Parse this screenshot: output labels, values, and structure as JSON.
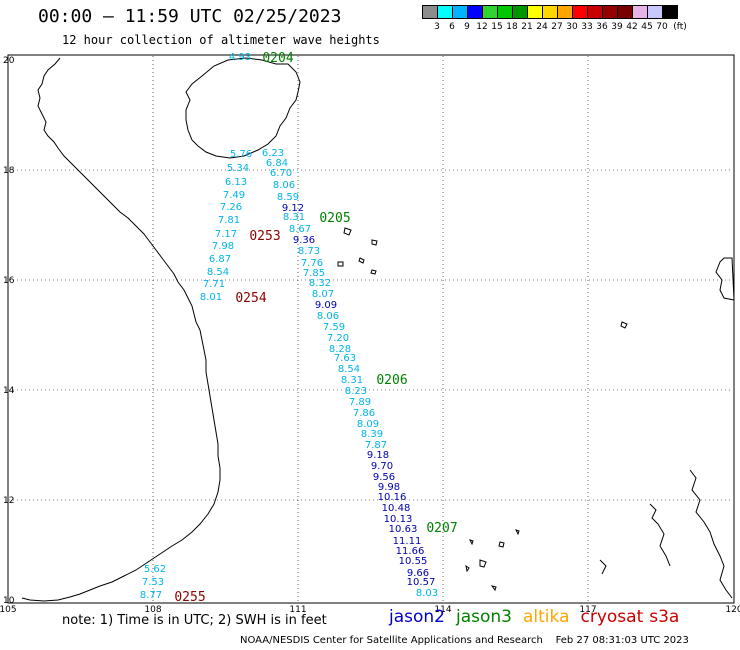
{
  "header": {
    "title": "00:00 – 11:59 UTC 02/25/2023",
    "subtitle": "12 hour collection of altimeter wave heights"
  },
  "colorbar": {
    "labels": [
      "3",
      "6",
      "9",
      "12",
      "15",
      "18",
      "21",
      "24",
      "27",
      "30",
      "33",
      "36",
      "39",
      "42",
      "45",
      "70",
      "(ft)"
    ],
    "colors": [
      "#8c8c8c",
      "#00ffff",
      "#00b4ff",
      "#0000ff",
      "#32d232",
      "#00c800",
      "#009600",
      "#ffff00",
      "#ffd700",
      "#ffa500",
      "#ff0000",
      "#c80000",
      "#960000",
      "#780000",
      "#e6b4e6",
      "#c8c8ff",
      "#000000"
    ]
  },
  "axes": {
    "lon_ticks": [
      "105",
      "108",
      "111",
      "114",
      "117",
      "120"
    ],
    "lat_ticks": [
      "20",
      "18",
      "16",
      "14",
      "12",
      "10"
    ]
  },
  "passes": [
    {
      "label": "0204",
      "color": "#008000"
    },
    {
      "label": "0205",
      "color": "#008000"
    },
    {
      "label": "0206",
      "color": "#008000"
    },
    {
      "label": "0207",
      "color": "#008000"
    },
    {
      "label": "0253",
      "color": "#8b0000"
    },
    {
      "label": "0254",
      "color": "#8b0000"
    },
    {
      "label": "0255",
      "color": "#8b0000"
    }
  ],
  "swh_light": [
    "4.93",
    "6.23",
    "5.76",
    "6.84",
    "5.34",
    "6.70",
    "6.13",
    "8.06",
    "7.49",
    "8.59",
    "7.26",
    "8.31",
    "7.81",
    "8.67",
    "7.17",
    "8.73",
    "7.98",
    "7.76",
    "6.87",
    "7.85",
    "8.54",
    "8.32",
    "7.71",
    "8.07",
    "8.01",
    "8.06",
    "7.59",
    "7.20",
    "8.28",
    "7.63",
    "8.54",
    "8.31",
    "8.23",
    "7.89",
    "7.86",
    "8.09",
    "8.39",
    "7.87",
    "5.62",
    "7.53",
    "8.77",
    "8.03"
  ],
  "swh_dark": [
    "9.12",
    "9.36",
    "9.09",
    "9.18",
    "9.70",
    "9.56",
    "9.98",
    "10.16",
    "10.48",
    "10.13",
    "10.63",
    "11.11",
    "11.66",
    "10.55",
    "9.66",
    "10.57"
  ],
  "note": "note: 1) Time is in UTC; 2) SWH is in feet",
  "legend": [
    {
      "name": "jason2",
      "color": "#0000cd"
    },
    {
      "name": "jason3",
      "color": "#008000"
    },
    {
      "name": "altika",
      "color": "#ffa500"
    },
    {
      "name": "cryosat",
      "color": "#cc0000"
    },
    {
      "name": "s3a",
      "color": "#cc0000"
    }
  ],
  "credit": "NOAA/NESDIS Center for Satellite Applications and Research    Feb 27 08:31:03 UTC 2023"
}
